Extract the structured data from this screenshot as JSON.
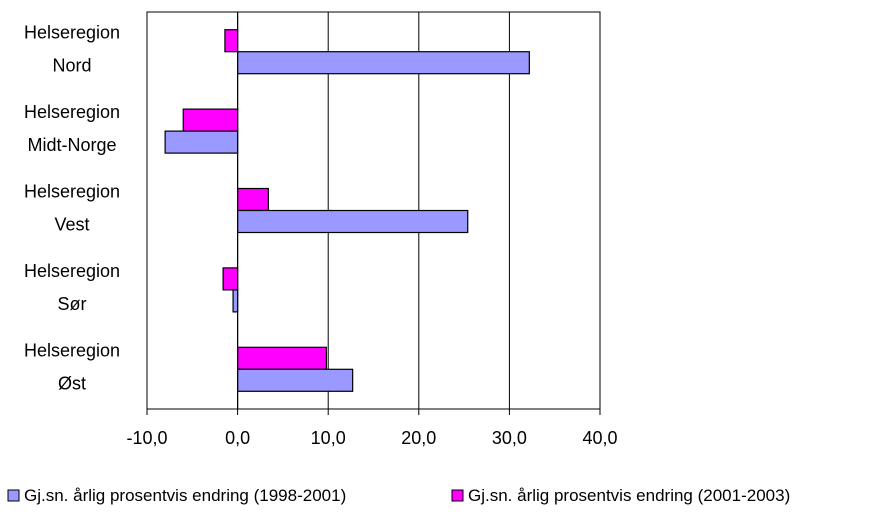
{
  "chart_data": {
    "type": "bar",
    "orientation": "horizontal",
    "categories": [
      [
        "Helseregion",
        "Nord"
      ],
      [
        "Helseregion",
        "Midt-Norge"
      ],
      [
        "Helseregion",
        "Vest"
      ],
      [
        "Helseregion",
        "Sør"
      ],
      [
        "Helseregion",
        "Øst"
      ]
    ],
    "series": [
      {
        "name": "Gj.sn. årlig prosentvis endring (1998-2001)",
        "color": "#9999ff",
        "values": [
          32.2,
          -8.0,
          25.4,
          -0.5,
          12.7
        ]
      },
      {
        "name": "Gj.sn. årlig prosentvis endring (2001-2003)",
        "color": "#ff00ff",
        "values": [
          -1.4,
          -6.0,
          3.4,
          -1.6,
          9.8
        ]
      }
    ],
    "xlim": [
      -10,
      40
    ],
    "xticks": [
      -10,
      0,
      10,
      20,
      30,
      40
    ],
    "xtick_labels": [
      "-10,0",
      "0,0",
      "10,0",
      "20,0",
      "30,0",
      "40,0"
    ],
    "grid": "vertical",
    "legend": "bottom",
    "title": "",
    "xlabel": "",
    "ylabel": ""
  }
}
